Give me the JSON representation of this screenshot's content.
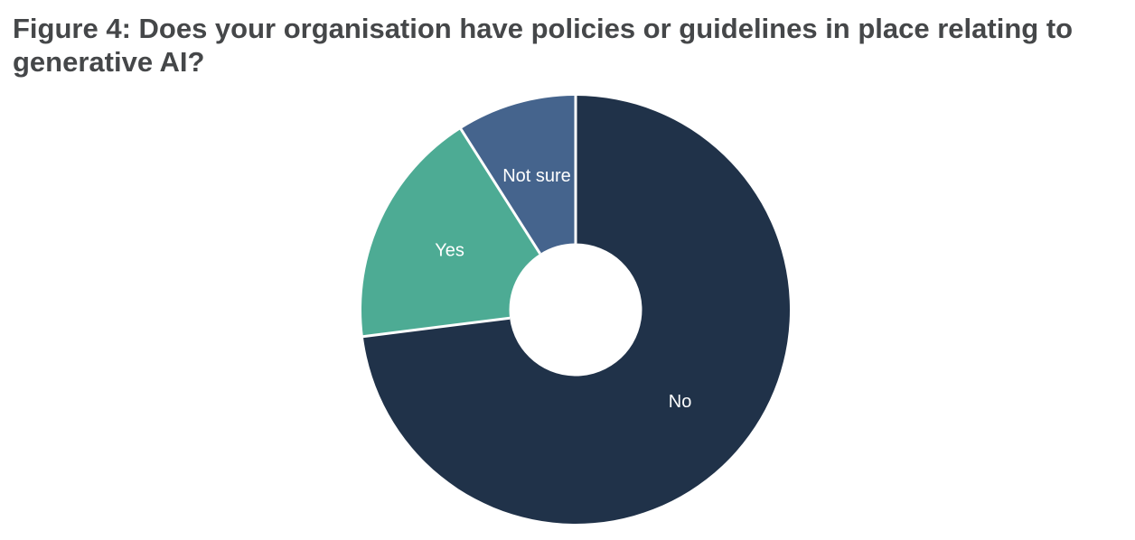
{
  "page": {
    "background_color": "#ffffff"
  },
  "figure": {
    "title_lines": [
      "Figure 4: Does your organisation have policies or guidelines in place relating to",
      "generative AI?"
    ],
    "title_color": "#454749"
  },
  "chart_data": {
    "type": "pie",
    "subtype": "donut",
    "title": "Figure 4: Does your organisation have policies or guidelines in place relating to generative AI?",
    "categories": [
      "No",
      "Yes",
      "Not sure"
    ],
    "values": [
      73,
      18,
      9
    ],
    "unit": "percent",
    "colors": [
      "#203249",
      "#4dab94",
      "#45648d"
    ],
    "slice_labels": [
      "No",
      "Yes",
      "Not sure"
    ],
    "start_angle_deg": 0,
    "direction": "clockwise",
    "inner_radius_ratio": 0.31,
    "label_radius_ratio": 0.65,
    "label_color": "#ffffff",
    "separator_color": "#ffffff",
    "legend": "none",
    "gridlines": false,
    "data_labels_show_values": false
  }
}
